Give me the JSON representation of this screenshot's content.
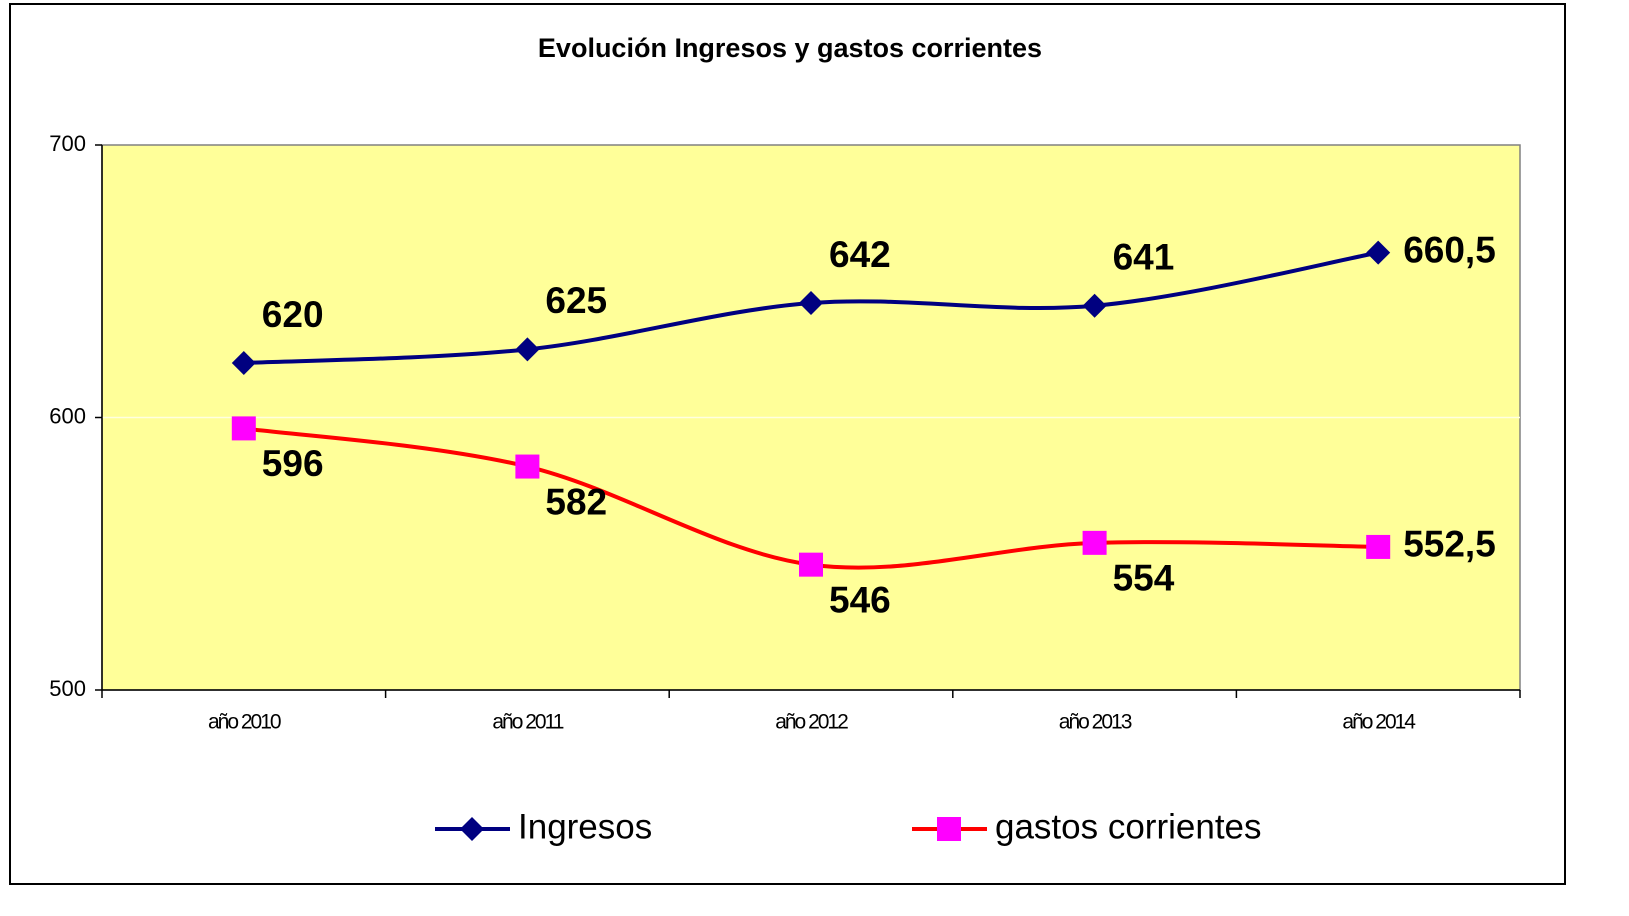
{
  "chart_data": {
    "type": "line",
    "title": "Evolución Ingresos y gastos corrientes",
    "categories": [
      "año 2010",
      "año 2011",
      "año 2012",
      "año 2013",
      "año 2014"
    ],
    "series": [
      {
        "name": "Ingresos",
        "color": "#000080",
        "marker_color": "#000080",
        "marker": "diamond",
        "values": [
          620,
          625,
          642,
          641,
          660.5
        ],
        "value_labels": [
          "620",
          "625",
          "642",
          "641",
          "660,5"
        ]
      },
      {
        "name": "gastos corrientes",
        "color": "#ff0000",
        "marker_color": "#ff00ff",
        "marker": "square",
        "values": [
          596,
          582,
          546,
          554,
          552.5
        ],
        "value_labels": [
          "596",
          "582",
          "546",
          "554",
          "552,5"
        ]
      }
    ],
    "ylim": [
      500,
      700
    ],
    "yticks": [
      500,
      600,
      700
    ],
    "grid": true,
    "plot_background": "#ffff99",
    "legend": "bottom"
  }
}
